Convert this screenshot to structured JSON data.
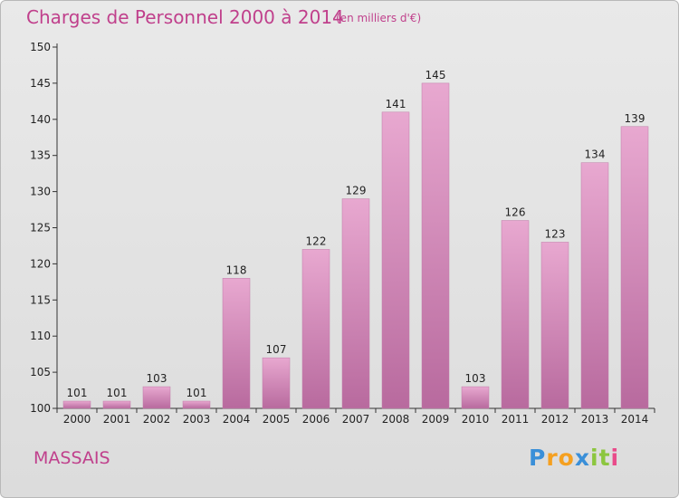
{
  "header": {
    "title": "Charges de Personnel 2000 à 2014",
    "subtitle": "(en milliers d'€)"
  },
  "footer": {
    "commune": "MASSAIS",
    "logo": {
      "letters": [
        "P",
        "r",
        "o",
        "x",
        "i",
        "t",
        "i"
      ],
      "colors": [
        "#3a8fd8",
        "#f5a020",
        "#f5a020",
        "#3a8fd8",
        "#8cc63f",
        "#8cc63f",
        "#e94b8a"
      ]
    }
  },
  "chart_data": {
    "type": "bar",
    "categories": [
      "2000",
      "2001",
      "2002",
      "2003",
      "2004",
      "2005",
      "2006",
      "2007",
      "2008",
      "2009",
      "2010",
      "2011",
      "2012",
      "2013",
      "2014"
    ],
    "values": [
      101,
      101,
      103,
      101,
      118,
      107,
      122,
      129,
      141,
      145,
      103,
      126,
      123,
      134,
      139
    ],
    "ylim": [
      100,
      150
    ],
    "yticks": [
      100,
      105,
      110,
      115,
      120,
      125,
      130,
      135,
      140,
      145,
      150
    ],
    "grid": false,
    "legend": "none",
    "bar_color": "#d888b8"
  }
}
